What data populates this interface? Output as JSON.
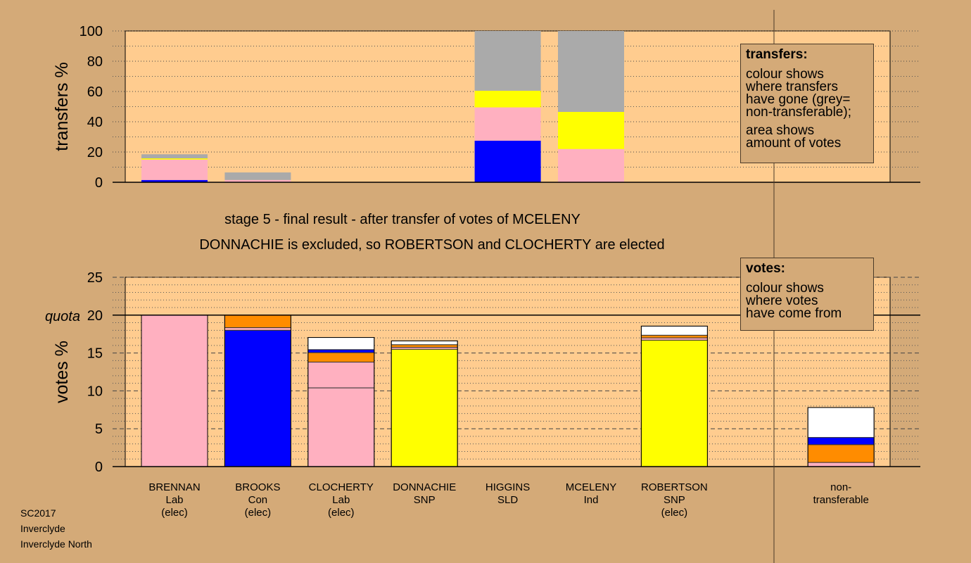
{
  "colors": {
    "background": "#d4aa78",
    "plot_area": "#ffcc8f",
    "Lab": "#ffb0c0",
    "Con": "#0000ff",
    "SNP": "#ffff00",
    "Ind": "#ff8c00",
    "nontransferable": "#aaaaaa",
    "other": "#ffffff"
  },
  "chart_data": [
    {
      "id": "transfers",
      "type": "bar",
      "stacked": true,
      "ylabel": "transfers %",
      "ylim": [
        0,
        100
      ],
      "yticks": [
        0,
        20,
        40,
        60,
        80,
        100
      ],
      "grid": "dotted",
      "bars": [
        {
          "candidate": "BRENNAN",
          "segments": [
            {
              "source": "Con",
              "value": 1.5
            },
            {
              "source": "Lab",
              "value": 13.5
            },
            {
              "source": "SNP",
              "value": 0.8
            },
            {
              "source": "nontransferable",
              "value": 2.7
            }
          ]
        },
        {
          "candidate": "BROOKS",
          "segments": [
            {
              "source": "Lab",
              "value": 1.5
            },
            {
              "source": "nontransferable",
              "value": 5.0
            }
          ]
        },
        {
          "candidate": "CLOCHERTY",
          "segments": []
        },
        {
          "candidate": "DONNACHIE",
          "segments": []
        },
        {
          "candidate": "HIGGINS",
          "segments": [
            {
              "source": "Con",
              "value": 27.5
            },
            {
              "source": "Lab",
              "value": 22.0
            },
            {
              "source": "SNP",
              "value": 11.0
            },
            {
              "source": "nontransferable",
              "value": 39.5
            }
          ]
        },
        {
          "candidate": "MCELENY",
          "segments": [
            {
              "source": "Lab",
              "value": 22.0
            },
            {
              "source": "SNP",
              "value": 24.5
            },
            {
              "source": "nontransferable",
              "value": 53.5
            }
          ]
        },
        {
          "candidate": "ROBERTSON",
          "segments": []
        },
        {
          "candidate": "",
          "segments": []
        }
      ]
    },
    {
      "id": "votes",
      "type": "bar",
      "stacked": true,
      "ylabel": "votes %",
      "ylim": [
        0,
        25
      ],
      "yticks": [
        0,
        5,
        10,
        15,
        20,
        25
      ],
      "quota": 20,
      "quota_label": "quota",
      "grid": "dashed",
      "bars": [
        {
          "candidate": "BRENNAN",
          "segments": [
            {
              "source": "Lab",
              "value": 20.0
            }
          ]
        },
        {
          "candidate": "BROOKS",
          "segments": [
            {
              "source": "Con",
              "value": 18.0
            },
            {
              "source": "Lab",
              "value": 0.35
            },
            {
              "source": "Ind",
              "value": 1.65
            }
          ]
        },
        {
          "candidate": "CLOCHERTY",
          "segments": [
            {
              "source": "Lab",
              "value": 10.4
            },
            {
              "source": "Lab",
              "value": 3.4
            },
            {
              "source": "Ind",
              "value": 1.25
            },
            {
              "source": "Con",
              "value": 0.4
            },
            {
              "source": "other",
              "value": 1.6
            }
          ]
        },
        {
          "candidate": "DONNACHIE",
          "segments": [
            {
              "source": "SNP",
              "value": 15.5
            },
            {
              "source": "Lab",
              "value": 0.25
            },
            {
              "source": "Ind",
              "value": 0.35
            },
            {
              "source": "other",
              "value": 0.5
            }
          ]
        },
        {
          "candidate": "HIGGINS",
          "segments": []
        },
        {
          "candidate": "MCELENY",
          "segments": []
        },
        {
          "candidate": "ROBERTSON",
          "segments": [
            {
              "source": "SNP",
              "value": 16.7
            },
            {
              "source": "Lab",
              "value": 0.3
            },
            {
              "source": "Ind",
              "value": 0.35
            },
            {
              "source": "other",
              "value": 1.2
            }
          ]
        },
        {
          "candidate": "",
          "segments": []
        },
        {
          "candidate": "non-transferable",
          "segments": [
            {
              "source": "Lab",
              "value": 0.55
            },
            {
              "source": "Ind",
              "value": 2.35
            },
            {
              "source": "Con",
              "value": 0.95
            },
            {
              "source": "other",
              "value": 3.95
            }
          ]
        }
      ]
    }
  ],
  "candidates": [
    {
      "lines": [
        "BRENNAN",
        "Lab",
        "(elec)"
      ]
    },
    {
      "lines": [
        "BROOKS",
        "Con",
        "(elec)"
      ]
    },
    {
      "lines": [
        "CLOCHERTY",
        "Lab",
        "(elec)"
      ]
    },
    {
      "lines": [
        "DONNACHIE",
        "SNP"
      ]
    },
    {
      "lines": [
        "HIGGINS",
        "SLD"
      ]
    },
    {
      "lines": [
        "MCELENY",
        "Ind"
      ]
    },
    {
      "lines": [
        "ROBERTSON",
        "SNP",
        "(elec)"
      ]
    },
    {
      "lines": []
    },
    {
      "lines": [
        "non-",
        "transferable"
      ]
    }
  ],
  "headline": {
    "line1": "stage 5 - final result - after transfer of votes of MCELENY",
    "line2": "DONNACHIE is excluded, so ROBERTSON and CLOCHERTY are elected"
  },
  "legend_transfers": {
    "title": "transfers:",
    "p1": "colour shows\nwhere transfers\nhave gone (grey=\nnon-transferable);",
    "p2": "area shows\namount of votes"
  },
  "legend_votes": {
    "title": "votes:",
    "p1": "colour shows\nwhere votes\nhave come from"
  },
  "footer": {
    "line1": "SC2017",
    "line2": "Inverclyde",
    "line3": "Inverclyde North"
  }
}
